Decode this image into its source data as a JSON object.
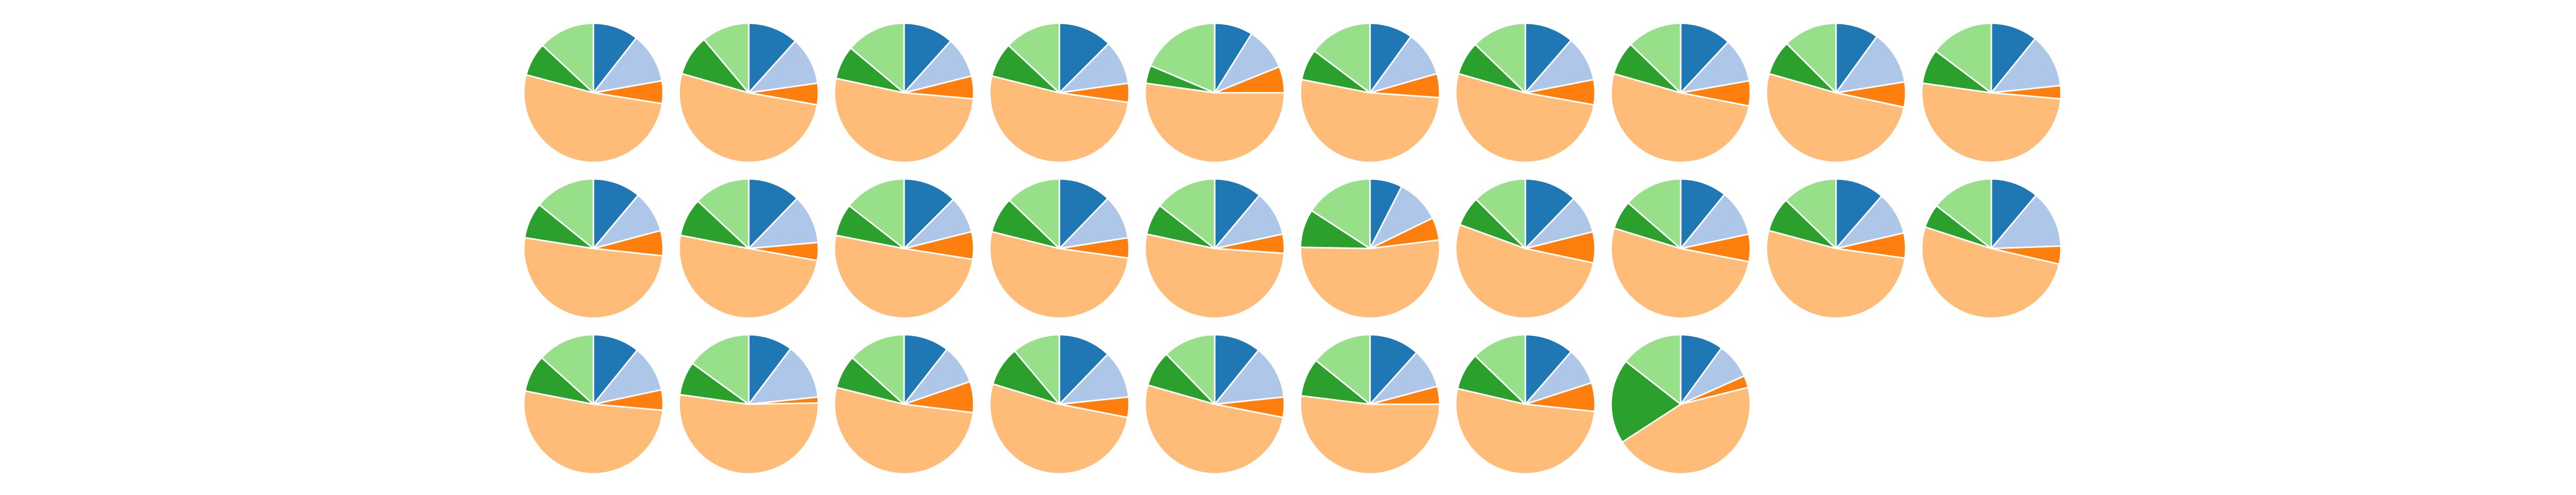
{
  "chart_data": {
    "type": "pie",
    "layout": {
      "rows": 3,
      "columns": 10
    },
    "start_angle_deg": 90,
    "direction": "clockwise",
    "colors": [
      "#1f77b4",
      "#aec7e8",
      "#ff7f0e",
      "#ffbb78",
      "#2ca02c",
      "#98df8a"
    ],
    "grid": false,
    "legend": "none",
    "pies": [
      [
        38,
        42,
        19,
        186,
        28,
        47
      ],
      [
        42,
        40,
        18,
        186,
        34,
        40
      ],
      [
        42,
        34,
        19,
        187,
        28,
        50
      ],
      [
        45,
        37,
        16,
        186,
        29,
        47
      ],
      [
        32,
        36,
        22,
        188,
        15,
        67
      ],
      [
        36,
        38,
        20,
        187,
        26,
        53
      ],
      [
        41,
        38,
        21,
        186,
        28,
        46
      ],
      [
        43,
        37,
        21,
        185,
        28,
        46
      ],
      [
        36,
        45,
        21,
        184,
        29,
        45
      ],
      [
        39,
        45,
        11,
        183,
        29,
        53
      ],
      [
        40,
        35,
        21,
        183,
        30,
        51
      ],
      [
        44,
        41,
        15,
        181,
        32,
        47
      ],
      [
        45,
        31,
        23,
        182,
        27,
        52
      ],
      [
        44,
        37,
        17,
        186,
        30,
        46
      ],
      [
        40,
        38,
        16,
        188,
        26,
        52
      ],
      [
        27,
        37,
        19,
        188,
        32,
        57
      ],
      [
        44,
        32,
        26,
        188,
        25,
        45
      ],
      [
        39,
        39,
        23,
        186,
        24,
        49
      ],
      [
        41,
        36,
        21,
        187,
        29,
        46
      ],
      [
        40,
        48,
        15,
        185,
        20,
        52
      ],
      [
        39,
        39,
        17,
        186,
        31,
        48
      ],
      [
        37,
        47,
        5,
        189,
        28,
        54
      ],
      [
        38,
        33,
        26,
        187,
        28,
        48
      ],
      [
        44,
        40,
        17,
        186,
        33,
        40
      ],
      [
        39,
        45,
        17,
        185,
        30,
        44
      ],
      [
        42,
        33,
        15,
        187,
        32,
        51
      ],
      [
        41,
        31,
        24,
        187,
        31,
        46
      ],
      [
        36,
        30,
        10,
        161,
        71,
        52
      ]
    ]
  }
}
